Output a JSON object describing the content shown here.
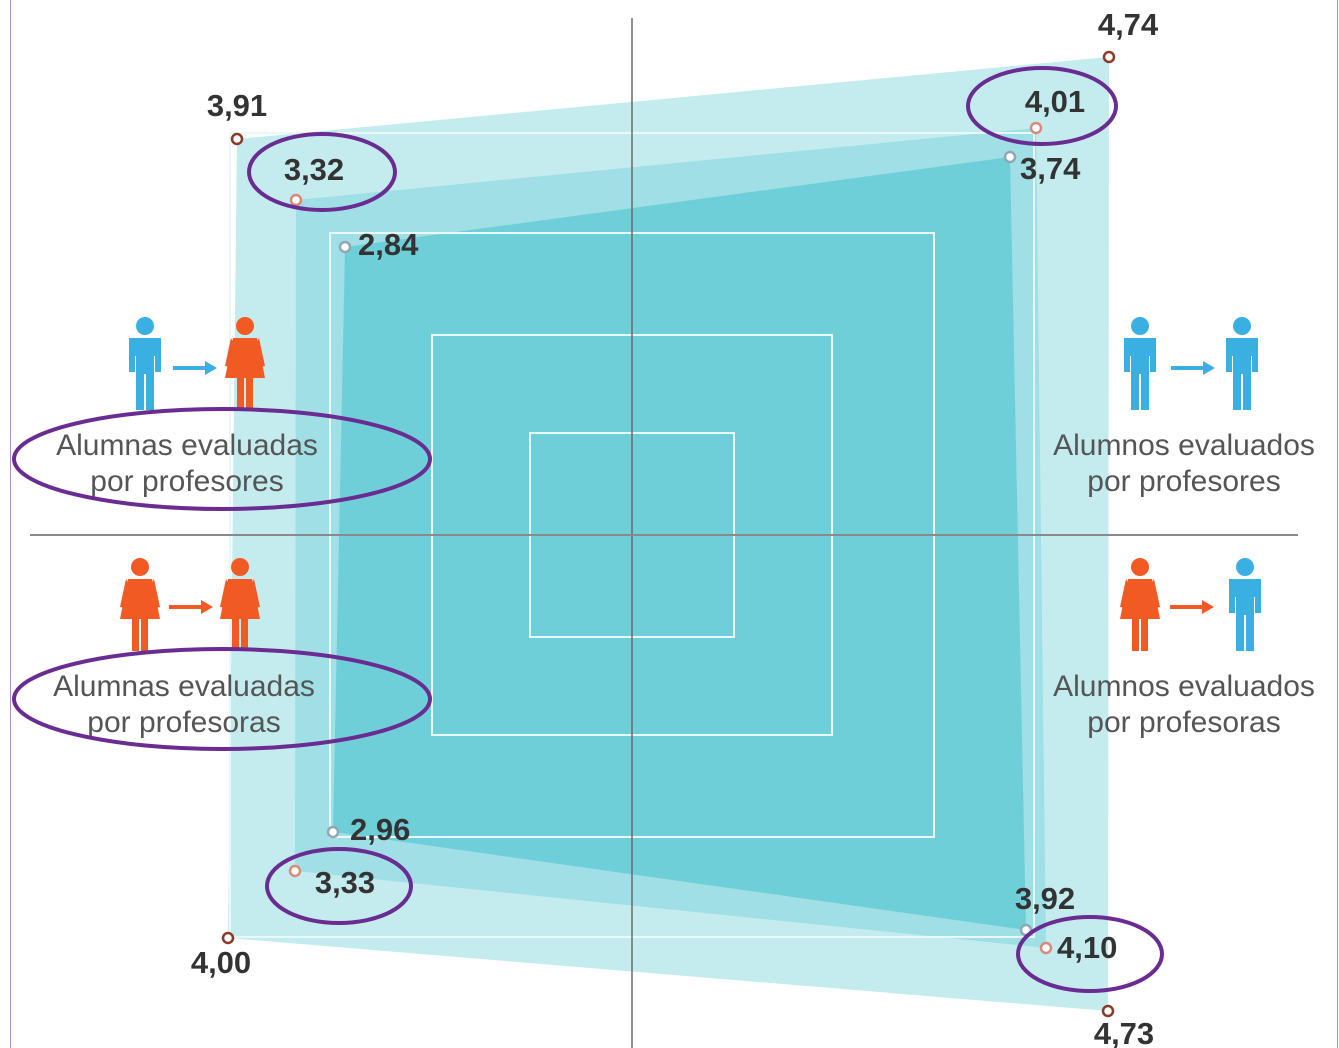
{
  "chart_data": {
    "type": "radar",
    "axes": [
      {
        "id": "alumnas-profesores",
        "label_lines": [
          "Alumnas evaluadas",
          "por profesores"
        ]
      },
      {
        "id": "alumnos-profesores",
        "label_lines": [
          "Alumnos evaluados",
          "por profesores"
        ]
      },
      {
        "id": "alumnos-profesoras",
        "label_lines": [
          "Alumnos evaluados",
          "por profesoras"
        ]
      },
      {
        "id": "alumnas-profesoras",
        "label_lines": [
          "Alumnas evaluadas",
          "por profesoras"
        ]
      }
    ],
    "axis_order_note_labels": [
      "top-left",
      "top-right",
      "bottom-right",
      "bottom-left"
    ],
    "series": [
      {
        "values": [
          3.91,
          4.74,
          4.73,
          4.0
        ],
        "labels": [
          "3,91",
          "4,74",
          "4,73",
          "4,00"
        ],
        "fill": "#c4ecef",
        "marker": "#8a3a2a"
      },
      {
        "values": [
          3.32,
          4.01,
          4.1,
          3.33
        ],
        "labels": [
          "3,32",
          "4,01",
          "4,10",
          "3,33"
        ],
        "fill": "#9fdfe5",
        "marker": "#d98a7a"
      },
      {
        "values": [
          2.84,
          3.74,
          3.92,
          2.96
        ],
        "labels": [
          "2,84",
          "3,74",
          "3,92",
          "2,96"
        ],
        "fill": "#6fcfd8",
        "marker": "#8fa8b4"
      }
    ],
    "highlighted": [
      "3,32",
      "4,01",
      "4,10",
      "3,33",
      "alumnas-profesores",
      "alumnas-profesoras"
    ],
    "colors": {
      "male_icon": "#3ab0e2",
      "female_icon": "#f15a22",
      "highlight_ellipse": "#6a2c91",
      "grid": "#e9f8fa",
      "axis": "#6b6b6b",
      "value_text": "#333333",
      "label_text": "#555555"
    },
    "icons": {
      "top-left": [
        "male-person-icon",
        "arrow-right-icon",
        "female-person-icon"
      ],
      "top-right": [
        "male-person-icon",
        "arrow-right-icon",
        "male-person-icon"
      ],
      "bottom-left": [
        "female-person-icon",
        "arrow-right-icon",
        "female-person-icon"
      ],
      "bottom-right": [
        "female-person-icon",
        "arrow-right-icon",
        "male-person-icon"
      ]
    }
  }
}
